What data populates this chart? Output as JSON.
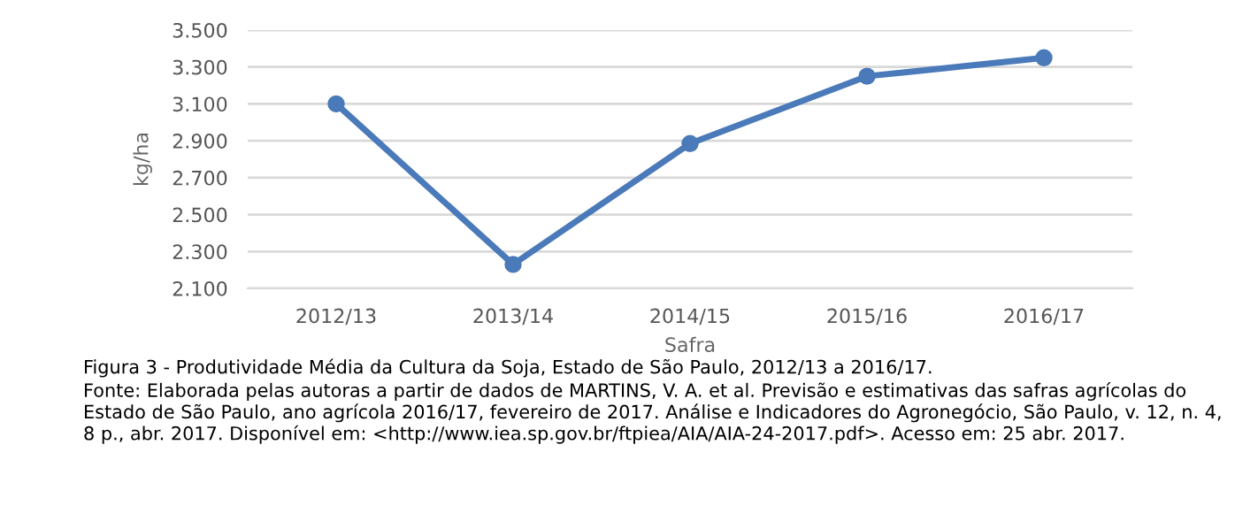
{
  "chart_data": {
    "type": "line",
    "title": "Figura 3 - Produtividade Média da Cultura da Soja, Estado de São Paulo, 2012/13 a 2016/17.",
    "xlabel": "Safra",
    "ylabel": "kg/ha",
    "categories": [
      "2012/13",
      "2013/14",
      "2014/15",
      "2015/16",
      "2016/17"
    ],
    "series": [
      {
        "color": "#4a7ab9",
        "values": [
          3100,
          2230,
          2885,
          3250,
          3350
        ]
      }
    ],
    "ylim": [
      2100,
      3500
    ],
    "yticks": [
      {
        "value": 2100,
        "label": "2.100"
      },
      {
        "value": 2300,
        "label": "2.300"
      },
      {
        "value": 2500,
        "label": "2.500"
      },
      {
        "value": 2700,
        "label": "2.700"
      },
      {
        "value": 2900,
        "label": "2.900"
      },
      {
        "value": 3100,
        "label": "3.100"
      },
      {
        "value": 3300,
        "label": "3.300"
      },
      {
        "value": 3500,
        "label": "3.500"
      }
    ],
    "grid": "y",
    "marker": "circle",
    "line_style": "solid",
    "legend": false,
    "annotations": [
      "Fonte: Elaborada pelas autoras a partir de dados de MARTINS, V. A. et al. Previsão e estimativas das safras agrícolas do Estado de São Paulo, ano agrícola 2016/17, fevereiro de 2017. Análise e Indicadores do Agronegócio, São Paulo, v. 12, n. 4, 8 p., abr. 2017. Disponível em: <http://www.iea.sp.gov.br/ftpiea/AIA/AIA-24-2017.pdf>. Acesso em: 25 abr. 2017."
    ]
  }
}
